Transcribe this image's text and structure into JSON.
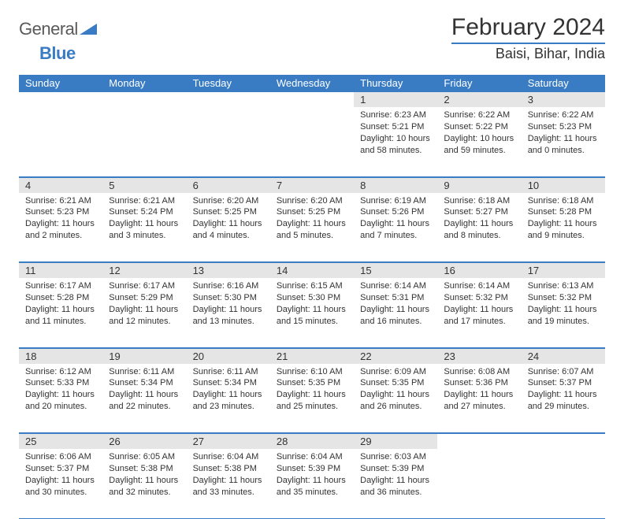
{
  "logo": {
    "part1": "General",
    "part2": "Blue"
  },
  "title": "February 2024",
  "location": "Baisi, Bihar, India",
  "colors": {
    "brand": "#3a7cc4",
    "header_bg": "#3a7cc4",
    "daynum_bg": "#e5e5e5",
    "text": "#333333"
  },
  "day_headers": [
    "Sunday",
    "Monday",
    "Tuesday",
    "Wednesday",
    "Thursday",
    "Friday",
    "Saturday"
  ],
  "weeks": [
    [
      null,
      null,
      null,
      null,
      {
        "n": "1",
        "sr": "6:23 AM",
        "ss": "5:21 PM",
        "dl": "10 hours and 58 minutes."
      },
      {
        "n": "2",
        "sr": "6:22 AM",
        "ss": "5:22 PM",
        "dl": "10 hours and 59 minutes."
      },
      {
        "n": "3",
        "sr": "6:22 AM",
        "ss": "5:23 PM",
        "dl": "11 hours and 0 minutes."
      }
    ],
    [
      {
        "n": "4",
        "sr": "6:21 AM",
        "ss": "5:23 PM",
        "dl": "11 hours and 2 minutes."
      },
      {
        "n": "5",
        "sr": "6:21 AM",
        "ss": "5:24 PM",
        "dl": "11 hours and 3 minutes."
      },
      {
        "n": "6",
        "sr": "6:20 AM",
        "ss": "5:25 PM",
        "dl": "11 hours and 4 minutes."
      },
      {
        "n": "7",
        "sr": "6:20 AM",
        "ss": "5:25 PM",
        "dl": "11 hours and 5 minutes."
      },
      {
        "n": "8",
        "sr": "6:19 AM",
        "ss": "5:26 PM",
        "dl": "11 hours and 7 minutes."
      },
      {
        "n": "9",
        "sr": "6:18 AM",
        "ss": "5:27 PM",
        "dl": "11 hours and 8 minutes."
      },
      {
        "n": "10",
        "sr": "6:18 AM",
        "ss": "5:28 PM",
        "dl": "11 hours and 9 minutes."
      }
    ],
    [
      {
        "n": "11",
        "sr": "6:17 AM",
        "ss": "5:28 PM",
        "dl": "11 hours and 11 minutes."
      },
      {
        "n": "12",
        "sr": "6:17 AM",
        "ss": "5:29 PM",
        "dl": "11 hours and 12 minutes."
      },
      {
        "n": "13",
        "sr": "6:16 AM",
        "ss": "5:30 PM",
        "dl": "11 hours and 13 minutes."
      },
      {
        "n": "14",
        "sr": "6:15 AM",
        "ss": "5:30 PM",
        "dl": "11 hours and 15 minutes."
      },
      {
        "n": "15",
        "sr": "6:14 AM",
        "ss": "5:31 PM",
        "dl": "11 hours and 16 minutes."
      },
      {
        "n": "16",
        "sr": "6:14 AM",
        "ss": "5:32 PM",
        "dl": "11 hours and 17 minutes."
      },
      {
        "n": "17",
        "sr": "6:13 AM",
        "ss": "5:32 PM",
        "dl": "11 hours and 19 minutes."
      }
    ],
    [
      {
        "n": "18",
        "sr": "6:12 AM",
        "ss": "5:33 PM",
        "dl": "11 hours and 20 minutes."
      },
      {
        "n": "19",
        "sr": "6:11 AM",
        "ss": "5:34 PM",
        "dl": "11 hours and 22 minutes."
      },
      {
        "n": "20",
        "sr": "6:11 AM",
        "ss": "5:34 PM",
        "dl": "11 hours and 23 minutes."
      },
      {
        "n": "21",
        "sr": "6:10 AM",
        "ss": "5:35 PM",
        "dl": "11 hours and 25 minutes."
      },
      {
        "n": "22",
        "sr": "6:09 AM",
        "ss": "5:35 PM",
        "dl": "11 hours and 26 minutes."
      },
      {
        "n": "23",
        "sr": "6:08 AM",
        "ss": "5:36 PM",
        "dl": "11 hours and 27 minutes."
      },
      {
        "n": "24",
        "sr": "6:07 AM",
        "ss": "5:37 PM",
        "dl": "11 hours and 29 minutes."
      }
    ],
    [
      {
        "n": "25",
        "sr": "6:06 AM",
        "ss": "5:37 PM",
        "dl": "11 hours and 30 minutes."
      },
      {
        "n": "26",
        "sr": "6:05 AM",
        "ss": "5:38 PM",
        "dl": "11 hours and 32 minutes."
      },
      {
        "n": "27",
        "sr": "6:04 AM",
        "ss": "5:38 PM",
        "dl": "11 hours and 33 minutes."
      },
      {
        "n": "28",
        "sr": "6:04 AM",
        "ss": "5:39 PM",
        "dl": "11 hours and 35 minutes."
      },
      {
        "n": "29",
        "sr": "6:03 AM",
        "ss": "5:39 PM",
        "dl": "11 hours and 36 minutes."
      },
      null,
      null
    ]
  ],
  "labels": {
    "sunrise": "Sunrise:",
    "sunset": "Sunset:",
    "daylight": "Daylight:"
  }
}
